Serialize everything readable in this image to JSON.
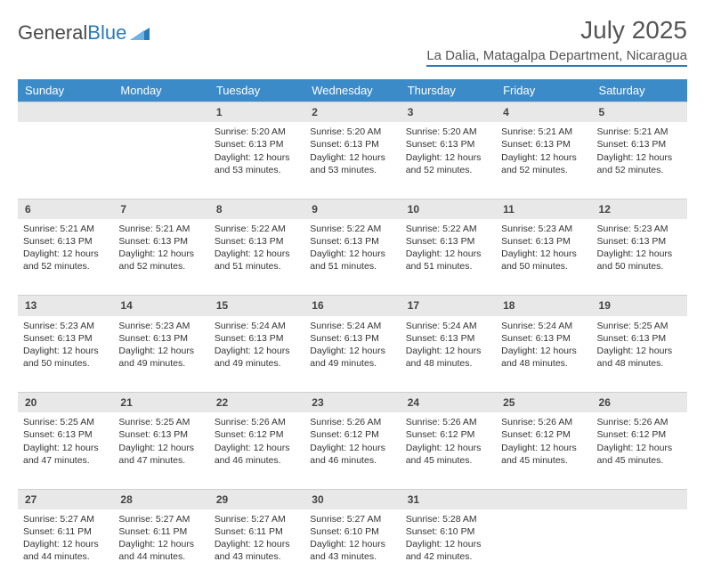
{
  "brand": {
    "part1": "General",
    "part2": "Blue"
  },
  "title": "July 2025",
  "subtitle": "La Dalia, Matagalpa Department, Nicaragua",
  "colors": {
    "header_bg": "#3b8bc9",
    "header_text": "#ffffff",
    "daynum_bg": "#e8e8e8",
    "text": "#333333",
    "brand_blue": "#2a7ab8"
  },
  "day_headers": [
    "Sunday",
    "Monday",
    "Tuesday",
    "Wednesday",
    "Thursday",
    "Friday",
    "Saturday"
  ],
  "weeks": [
    {
      "nums": [
        "",
        "",
        "1",
        "2",
        "3",
        "4",
        "5"
      ],
      "cells": [
        null,
        null,
        {
          "sunrise": "5:20 AM",
          "sunset": "6:13 PM",
          "daylight": "12 hours and 53 minutes."
        },
        {
          "sunrise": "5:20 AM",
          "sunset": "6:13 PM",
          "daylight": "12 hours and 53 minutes."
        },
        {
          "sunrise": "5:20 AM",
          "sunset": "6:13 PM",
          "daylight": "12 hours and 52 minutes."
        },
        {
          "sunrise": "5:21 AM",
          "sunset": "6:13 PM",
          "daylight": "12 hours and 52 minutes."
        },
        {
          "sunrise": "5:21 AM",
          "sunset": "6:13 PM",
          "daylight": "12 hours and 52 minutes."
        }
      ]
    },
    {
      "nums": [
        "6",
        "7",
        "8",
        "9",
        "10",
        "11",
        "12"
      ],
      "cells": [
        {
          "sunrise": "5:21 AM",
          "sunset": "6:13 PM",
          "daylight": "12 hours and 52 minutes."
        },
        {
          "sunrise": "5:21 AM",
          "sunset": "6:13 PM",
          "daylight": "12 hours and 52 minutes."
        },
        {
          "sunrise": "5:22 AM",
          "sunset": "6:13 PM",
          "daylight": "12 hours and 51 minutes."
        },
        {
          "sunrise": "5:22 AM",
          "sunset": "6:13 PM",
          "daylight": "12 hours and 51 minutes."
        },
        {
          "sunrise": "5:22 AM",
          "sunset": "6:13 PM",
          "daylight": "12 hours and 51 minutes."
        },
        {
          "sunrise": "5:23 AM",
          "sunset": "6:13 PM",
          "daylight": "12 hours and 50 minutes."
        },
        {
          "sunrise": "5:23 AM",
          "sunset": "6:13 PM",
          "daylight": "12 hours and 50 minutes."
        }
      ]
    },
    {
      "nums": [
        "13",
        "14",
        "15",
        "16",
        "17",
        "18",
        "19"
      ],
      "cells": [
        {
          "sunrise": "5:23 AM",
          "sunset": "6:13 PM",
          "daylight": "12 hours and 50 minutes."
        },
        {
          "sunrise": "5:23 AM",
          "sunset": "6:13 PM",
          "daylight": "12 hours and 49 minutes."
        },
        {
          "sunrise": "5:24 AM",
          "sunset": "6:13 PM",
          "daylight": "12 hours and 49 minutes."
        },
        {
          "sunrise": "5:24 AM",
          "sunset": "6:13 PM",
          "daylight": "12 hours and 49 minutes."
        },
        {
          "sunrise": "5:24 AM",
          "sunset": "6:13 PM",
          "daylight": "12 hours and 48 minutes."
        },
        {
          "sunrise": "5:24 AM",
          "sunset": "6:13 PM",
          "daylight": "12 hours and 48 minutes."
        },
        {
          "sunrise": "5:25 AM",
          "sunset": "6:13 PM",
          "daylight": "12 hours and 48 minutes."
        }
      ]
    },
    {
      "nums": [
        "20",
        "21",
        "22",
        "23",
        "24",
        "25",
        "26"
      ],
      "cells": [
        {
          "sunrise": "5:25 AM",
          "sunset": "6:13 PM",
          "daylight": "12 hours and 47 minutes."
        },
        {
          "sunrise": "5:25 AM",
          "sunset": "6:13 PM",
          "daylight": "12 hours and 47 minutes."
        },
        {
          "sunrise": "5:26 AM",
          "sunset": "6:12 PM",
          "daylight": "12 hours and 46 minutes."
        },
        {
          "sunrise": "5:26 AM",
          "sunset": "6:12 PM",
          "daylight": "12 hours and 46 minutes."
        },
        {
          "sunrise": "5:26 AM",
          "sunset": "6:12 PM",
          "daylight": "12 hours and 45 minutes."
        },
        {
          "sunrise": "5:26 AM",
          "sunset": "6:12 PM",
          "daylight": "12 hours and 45 minutes."
        },
        {
          "sunrise": "5:26 AM",
          "sunset": "6:12 PM",
          "daylight": "12 hours and 45 minutes."
        }
      ]
    },
    {
      "nums": [
        "27",
        "28",
        "29",
        "30",
        "31",
        "",
        ""
      ],
      "cells": [
        {
          "sunrise": "5:27 AM",
          "sunset": "6:11 PM",
          "daylight": "12 hours and 44 minutes."
        },
        {
          "sunrise": "5:27 AM",
          "sunset": "6:11 PM",
          "daylight": "12 hours and 44 minutes."
        },
        {
          "sunrise": "5:27 AM",
          "sunset": "6:11 PM",
          "daylight": "12 hours and 43 minutes."
        },
        {
          "sunrise": "5:27 AM",
          "sunset": "6:10 PM",
          "daylight": "12 hours and 43 minutes."
        },
        {
          "sunrise": "5:28 AM",
          "sunset": "6:10 PM",
          "daylight": "12 hours and 42 minutes."
        },
        null,
        null
      ]
    }
  ],
  "labels": {
    "sunrise_prefix": "Sunrise: ",
    "sunset_prefix": "Sunset: ",
    "daylight_prefix": "Daylight: "
  }
}
